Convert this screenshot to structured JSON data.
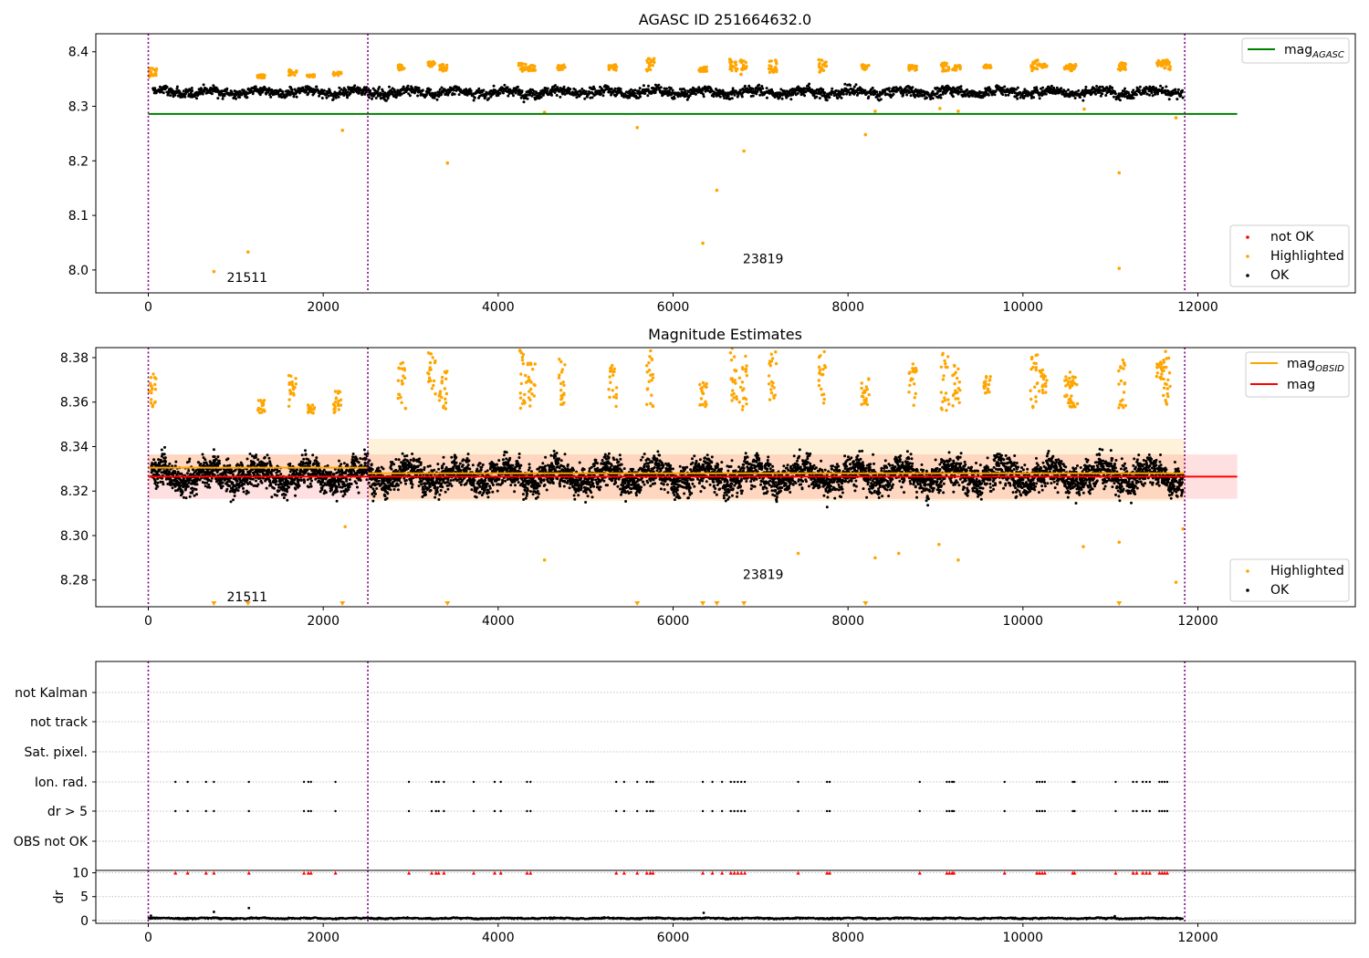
{
  "chart_data": [
    {
      "type": "scatter",
      "title": "AGASC ID 251664632.0",
      "xlim": [
        -600,
        13800
      ],
      "ylim": [
        7.958,
        8.433
      ],
      "xticks": [
        0,
        2000,
        4000,
        6000,
        8000,
        10000,
        12000
      ],
      "xtick_labels": [
        "0",
        "2000",
        "4000",
        "6000",
        "8000",
        "10000",
        "12000"
      ],
      "yticks": [
        8.0,
        8.1,
        8.2,
        8.3,
        8.4
      ],
      "ytick_labels": [
        "8.0",
        "8.1",
        "8.2",
        "8.3",
        "8.4"
      ],
      "obsid_boundaries": [
        0,
        2510,
        11850
      ],
      "obsid_labels": [
        {
          "x": 1130,
          "y": 7.978,
          "text": "21511"
        },
        {
          "x": 7030,
          "y": 8.012,
          "text": "23819"
        }
      ],
      "lines": [
        {
          "name": "mag_AGASC",
          "y": 8.286,
          "x": [
            0,
            12450
          ],
          "color": "#008000"
        }
      ],
      "series": [
        {
          "name": "OK",
          "color": "#000000",
          "band": {
            "from": 50,
            "to": 11830,
            "center": 8.326,
            "spread": 0.011
          }
        },
        {
          "name": "Highlighted",
          "color": "#ffa500",
          "clusters": [
            {
              "x": 50,
              "y0": 8.353,
              "y1": 8.372
            },
            {
              "x": 1290,
              "y0": 8.352,
              "y1": 8.358
            },
            {
              "x": 1650,
              "y0": 8.357,
              "y1": 8.368
            },
            {
              "x": 1860,
              "y0": 8.354,
              "y1": 8.358
            },
            {
              "x": 2160,
              "y0": 8.356,
              "y1": 8.363
            },
            {
              "x": 2900,
              "y0": 8.366,
              "y1": 8.376
            },
            {
              "x": 3240,
              "y0": 8.372,
              "y1": 8.382
            },
            {
              "x": 3370,
              "y0": 8.362,
              "y1": 8.377
            },
            {
              "x": 4280,
              "y0": 8.364,
              "y1": 8.379
            },
            {
              "x": 4380,
              "y0": 8.365,
              "y1": 8.375
            },
            {
              "x": 4720,
              "y0": 8.366,
              "y1": 8.376
            },
            {
              "x": 5310,
              "y0": 8.366,
              "y1": 8.377
            },
            {
              "x": 5740,
              "y0": 8.364,
              "y1": 8.388
            },
            {
              "x": 6340,
              "y0": 8.364,
              "y1": 8.372
            },
            {
              "x": 6690,
              "y0": 8.365,
              "y1": 8.387
            },
            {
              "x": 6800,
              "y0": 8.358,
              "y1": 8.385
            },
            {
              "x": 7140,
              "y0": 8.362,
              "y1": 8.386
            },
            {
              "x": 7710,
              "y0": 8.362,
              "y1": 8.386
            },
            {
              "x": 8200,
              "y0": 8.367,
              "y1": 8.377
            },
            {
              "x": 8740,
              "y0": 8.366,
              "y1": 8.376
            },
            {
              "x": 9110,
              "y0": 8.364,
              "y1": 8.38
            },
            {
              "x": 9240,
              "y0": 8.366,
              "y1": 8.375
            },
            {
              "x": 9590,
              "y0": 8.37,
              "y1": 8.376
            },
            {
              "x": 10130,
              "y0": 8.365,
              "y1": 8.386
            },
            {
              "x": 10230,
              "y0": 8.371,
              "y1": 8.378
            },
            {
              "x": 10520,
              "y0": 8.368,
              "y1": 8.375
            },
            {
              "x": 10580,
              "y0": 8.365,
              "y1": 8.377
            },
            {
              "x": 11130,
              "y0": 8.365,
              "y1": 8.38
            },
            {
              "x": 11570,
              "y0": 8.374,
              "y1": 8.384
            },
            {
              "x": 11640,
              "y0": 8.367,
              "y1": 8.386
            }
          ],
          "points": [
            [
              750,
              7.997
            ],
            [
              1140,
              8.033
            ],
            [
              2220,
              8.256
            ],
            [
              3420,
              8.196
            ],
            [
              4530,
              8.289
            ],
            [
              5590,
              8.261
            ],
            [
              6340,
              8.049
            ],
            [
              6500,
              8.146
            ],
            [
              6810,
              8.218
            ],
            [
              8200,
              8.248
            ],
            [
              8310,
              8.291
            ],
            [
              9050,
              8.296
            ],
            [
              9260,
              8.291
            ],
            [
              10700,
              8.295
            ],
            [
              11100,
              8.178
            ],
            [
              11100,
              8.003
            ],
            [
              11750,
              8.279
            ]
          ]
        },
        {
          "name": "not OK",
          "color": "#ff0000",
          "points": []
        }
      ],
      "legend_lines": [
        {
          "label_main": "mag",
          "label_sub": "AGASC",
          "color": "#008000"
        }
      ],
      "legend_points": [
        {
          "label": "not OK",
          "color": "#ff0000"
        },
        {
          "label": "Highlighted",
          "color": "#ffa500"
        },
        {
          "label": "OK",
          "color": "#000000"
        }
      ]
    },
    {
      "type": "scatter",
      "title": "Magnitude Estimates",
      "xlim": [
        -600,
        13800
      ],
      "ylim": [
        8.268,
        8.3845
      ],
      "xticks": [
        0,
        2000,
        4000,
        6000,
        8000,
        10000,
        12000
      ],
      "xtick_labels": [
        "0",
        "2000",
        "4000",
        "6000",
        "8000",
        "10000",
        "12000"
      ],
      "yticks": [
        8.28,
        8.3,
        8.32,
        8.34,
        8.36,
        8.38
      ],
      "ytick_labels": [
        "8.28",
        "8.30",
        "8.32",
        "8.34",
        "8.36",
        "8.38"
      ],
      "obsid_boundaries": [
        0,
        2510,
        11850
      ],
      "obsid_labels": [
        {
          "x": 1130,
          "y": 8.2705,
          "text": "21511"
        },
        {
          "x": 7030,
          "y": 8.2805,
          "text": "23819"
        }
      ],
      "mag": {
        "value": 8.3265,
        "band": [
          8.3165,
          8.3365
        ],
        "x": [
          0,
          12450
        ],
        "color": "#ff0000"
      },
      "mag_obsid": [
        {
          "x": [
            0,
            2510
          ],
          "value": 8.3305,
          "band": [
            8.3245,
            8.3365
          ]
        },
        {
          "x": [
            2510,
            11850
          ],
          "value": 8.328,
          "band": [
            8.3155,
            8.3435
          ]
        }
      ],
      "series": [
        {
          "name": "OK",
          "color": "#000000",
          "band": {
            "from": 30,
            "to": 11830,
            "center": 8.327,
            "spread": 0.0085
          }
        },
        {
          "name": "Highlighted",
          "color": "#ffa500",
          "clusters": [
            {
              "x": 50,
              "y0": 8.356,
              "y1": 8.373
            },
            {
              "x": 1290,
              "y0": 8.355,
              "y1": 8.361
            },
            {
              "x": 1650,
              "y0": 8.357,
              "y1": 8.373
            },
            {
              "x": 1860,
              "y0": 8.355,
              "y1": 8.359
            },
            {
              "x": 2160,
              "y0": 8.355,
              "y1": 8.367
            },
            {
              "x": 2900,
              "y0": 8.357,
              "y1": 8.379
            },
            {
              "x": 3240,
              "y0": 8.363,
              "y1": 8.383
            },
            {
              "x": 3370,
              "y0": 8.357,
              "y1": 8.374
            },
            {
              "x": 4280,
              "y0": 8.357,
              "y1": 8.384
            },
            {
              "x": 4380,
              "y0": 8.358,
              "y1": 8.378
            },
            {
              "x": 4720,
              "y0": 8.358,
              "y1": 8.38
            },
            {
              "x": 5310,
              "y0": 8.358,
              "y1": 8.377
            },
            {
              "x": 5740,
              "y0": 8.358,
              "y1": 8.3845
            },
            {
              "x": 6340,
              "y0": 8.358,
              "y1": 8.369
            },
            {
              "x": 6690,
              "y0": 8.359,
              "y1": 8.3845
            },
            {
              "x": 6800,
              "y0": 8.355,
              "y1": 8.3845
            },
            {
              "x": 7140,
              "y0": 8.357,
              "y1": 8.3845
            },
            {
              "x": 7710,
              "y0": 8.358,
              "y1": 8.3845
            },
            {
              "x": 8200,
              "y0": 8.358,
              "y1": 8.371
            },
            {
              "x": 8740,
              "y0": 8.358,
              "y1": 8.378
            },
            {
              "x": 9110,
              "y0": 8.356,
              "y1": 8.383
            },
            {
              "x": 9240,
              "y0": 8.358,
              "y1": 8.377
            },
            {
              "x": 9590,
              "y0": 8.364,
              "y1": 8.372
            },
            {
              "x": 10130,
              "y0": 8.357,
              "y1": 8.3845
            },
            {
              "x": 10230,
              "y0": 8.364,
              "y1": 8.376
            },
            {
              "x": 10520,
              "y0": 8.357,
              "y1": 8.372
            },
            {
              "x": 10580,
              "y0": 8.357,
              "y1": 8.374
            },
            {
              "x": 11130,
              "y0": 8.357,
              "y1": 8.38
            },
            {
              "x": 11570,
              "y0": 8.37,
              "y1": 8.378
            },
            {
              "x": 11640,
              "y0": 8.358,
              "y1": 8.3845
            }
          ],
          "points": [
            [
              2250,
              8.304
            ],
            [
              4530,
              8.289
            ],
            [
              7430,
              8.292
            ],
            [
              8310,
              8.29
            ],
            [
              8580,
              8.292
            ],
            [
              9040,
              8.296
            ],
            [
              9260,
              8.289
            ],
            [
              10690,
              8.295
            ],
            [
              11100,
              8.297
            ],
            [
              11750,
              8.279
            ],
            [
              11830,
              8.303
            ]
          ],
          "below_markers": [
            750,
            1140,
            2220,
            3420,
            5590,
            6340,
            6500,
            6810,
            8200,
            11100
          ]
        }
      ],
      "legend_lines": [
        {
          "label_main": "mag",
          "label_sub": "OBSID",
          "color": "#ffa500"
        },
        {
          "label_main": "mag",
          "label_sub": "",
          "color": "#ff0000"
        }
      ],
      "legend_points": [
        {
          "label": "Highlighted",
          "color": "#ffa500"
        },
        {
          "label": "OK",
          "color": "#000000"
        }
      ]
    },
    {
      "type": "scatter",
      "title": "",
      "xlim": [
        -600,
        13800
      ],
      "categories": [
        "not Kalman",
        "not track",
        "Sat. pixel.",
        "Ion. rad.",
        "dr > 5",
        "OBS not OK"
      ],
      "obsid_boundaries": [
        0,
        2510,
        11850
      ],
      "flag_x": [
        310,
        450,
        660,
        750,
        1150,
        1780,
        1830,
        1860,
        2140,
        2980,
        3240,
        3290,
        3320,
        3380,
        3720,
        3960,
        4030,
        4330,
        4370,
        5350,
        5440,
        5590,
        5700,
        5740,
        5770,
        6340,
        6450,
        6560,
        6660,
        6700,
        6740,
        6780,
        6820,
        7430,
        7760,
        7790,
        8820,
        9130,
        9160,
        9190,
        9210,
        9790,
        10160,
        10190,
        10220,
        10250,
        10570,
        10590,
        11060,
        11260,
        11300,
        11370,
        11410,
        11450,
        11560,
        11590,
        11620,
        11650
      ],
      "flag_rows": [
        "Ion. rad.",
        "dr > 5"
      ]
    },
    {
      "type": "scatter",
      "title": "",
      "xlim": [
        -600,
        13800
      ],
      "ylim": [
        -0.6,
        10.5
      ],
      "ylabel": "dr",
      "yticks": [
        0,
        5,
        10
      ],
      "ytick_labels": [
        "0",
        "5",
        "10"
      ],
      "xticks": [
        0,
        2000,
        4000,
        6000,
        8000,
        10000,
        12000
      ],
      "xtick_labels": [
        "0",
        "2000",
        "4000",
        "6000",
        "8000",
        "10000",
        "12000"
      ],
      "obsid_boundaries": [
        0,
        2510,
        11850
      ],
      "series": [
        {
          "name": "dr",
          "color": "#000000",
          "band": {
            "from": 0,
            "to": 11830,
            "center": 0.45,
            "spread": 0.18
          },
          "points": [
            [
              30,
              1.0
            ],
            [
              750,
              1.8
            ],
            [
              1150,
              2.6
            ],
            [
              6350,
              1.6
            ],
            [
              11050,
              0.9
            ]
          ]
        },
        {
          "name": "dr > 5",
          "color": "#ff0000",
          "marker": "triangle",
          "y": 10
        }
      ]
    }
  ]
}
